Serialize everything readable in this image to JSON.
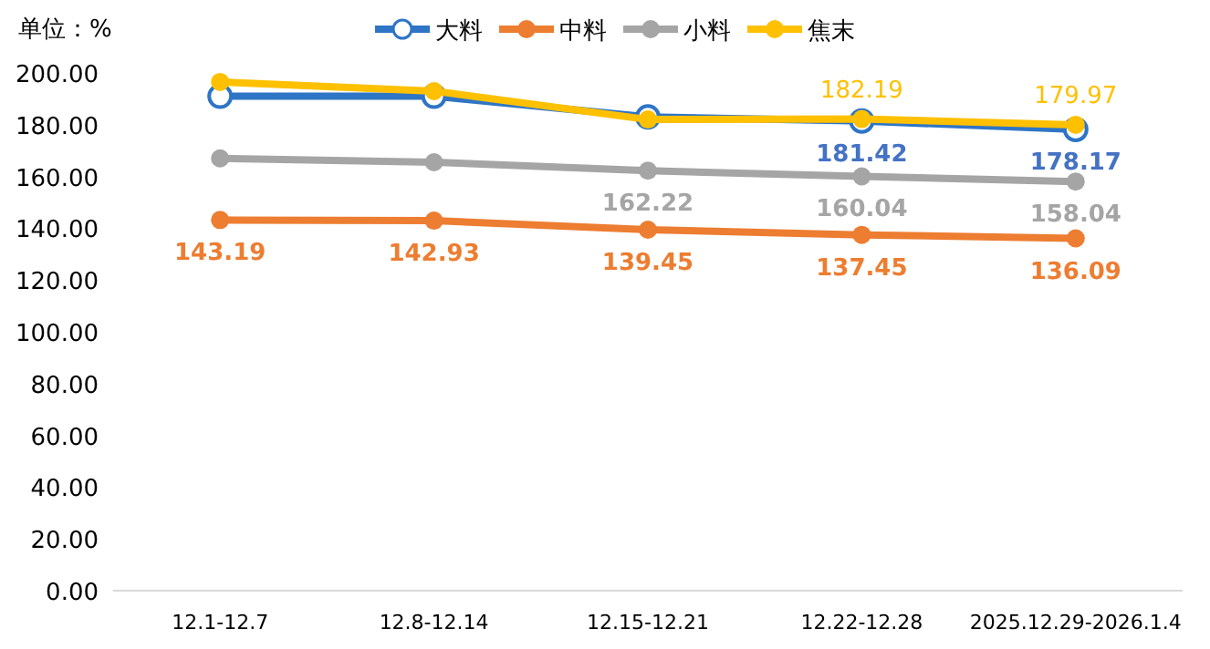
{
  "chart_data": {
    "type": "line",
    "ylabel": "单位：%",
    "categories": [
      "12.1-12.7",
      "12.8-12.14",
      "12.15-12.21",
      "12.22-12.28",
      "2025.12.29-2026.1.4"
    ],
    "ylim": [
      0,
      200
    ],
    "yticks": [
      {
        "value": 0,
        "label": "0.00"
      },
      {
        "value": 20,
        "label": "20.00"
      },
      {
        "value": 40,
        "label": "40.00"
      },
      {
        "value": 60,
        "label": "60.00"
      },
      {
        "value": 80,
        "label": "80.00"
      },
      {
        "value": 100,
        "label": "100.00"
      },
      {
        "value": 120,
        "label": "120.00"
      },
      {
        "value": 140,
        "label": "140.00"
      },
      {
        "value": 160,
        "label": "160.00"
      },
      {
        "value": 180,
        "label": "180.00"
      },
      {
        "value": 200,
        "label": "200.00"
      }
    ],
    "grid": false,
    "legend": "top",
    "marker": "circle",
    "series": [
      {
        "name": "大料",
        "color": "#2e75c6",
        "values": [
          191,
          191,
          183,
          181.42,
          178.17
        ],
        "value_labels": [
          null,
          null,
          null,
          "181.42",
          "178.17"
        ]
      },
      {
        "name": "中料",
        "color": "#ed7d31",
        "values": [
          143.19,
          142.93,
          139.45,
          137.45,
          136.09
        ],
        "value_labels": [
          "143.19",
          "142.93",
          "139.45",
          "137.45",
          "136.09"
        ]
      },
      {
        "name": "小料",
        "color": "#a5a5a5",
        "values": [
          167,
          165.5,
          162.22,
          160.04,
          158.04
        ],
        "value_labels": [
          null,
          null,
          "162.22",
          "160.04",
          "158.04"
        ]
      },
      {
        "name": "焦末",
        "color": "#ffc000",
        "values": [
          196.5,
          193,
          182,
          182.19,
          179.97
        ],
        "value_labels": [
          null,
          null,
          null,
          "182.19",
          "179.97"
        ]
      }
    ]
  }
}
